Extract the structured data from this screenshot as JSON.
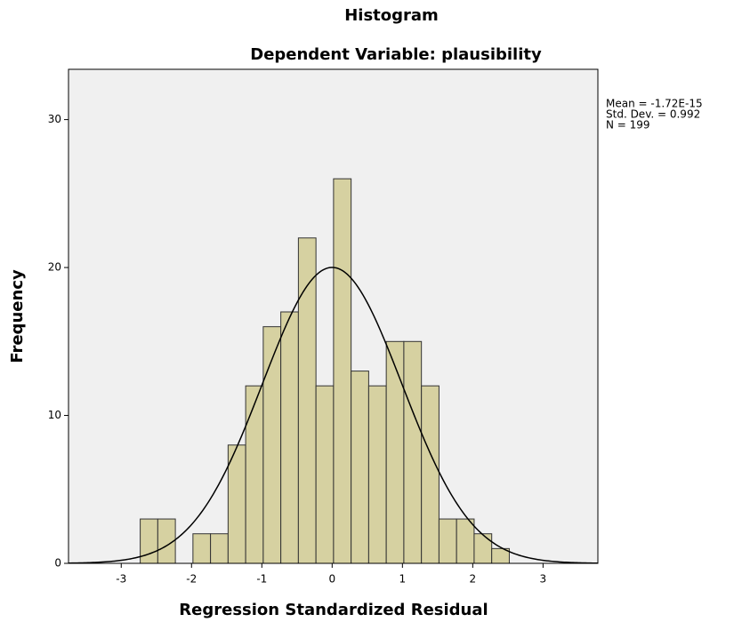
{
  "chart_data": {
    "type": "histogram",
    "title": "Histogram",
    "subtitle": "Dependent Variable: plausibility",
    "x_label": "Regression Standardized Residual",
    "y_label": "Frequency",
    "bins": [
      -2.73,
      -2.48,
      -2.23,
      -1.98,
      -1.73,
      -1.48,
      -1.23,
      -0.98,
      -0.73,
      -0.48,
      -0.23,
      0.02,
      0.27,
      0.52,
      0.77,
      1.02,
      1.27,
      1.52,
      1.77,
      2.02,
      2.27,
      2.52
    ],
    "values": [
      3,
      3,
      0,
      2,
      2,
      8,
      12,
      16,
      17,
      22,
      12,
      26,
      13,
      12,
      15,
      15,
      12,
      3,
      3,
      2,
      1
    ],
    "color": "#d6d1a1",
    "xlim": [
      -3.75,
      3.78
    ],
    "xticks": [
      -3,
      -2,
      -1,
      0,
      1,
      2,
      3
    ],
    "ylim": [
      0,
      33.4
    ],
    "yticks": [
      0,
      10,
      20,
      30
    ],
    "stats": [
      {
        "value": -1.72e-15,
        "label": "Mean = -1.72E-15"
      },
      {
        "value": 0.992,
        "label": "Std. Dev. = 0.992"
      },
      {
        "value": 199,
        "label": "N = 199"
      }
    ],
    "normal_curve": true
  }
}
